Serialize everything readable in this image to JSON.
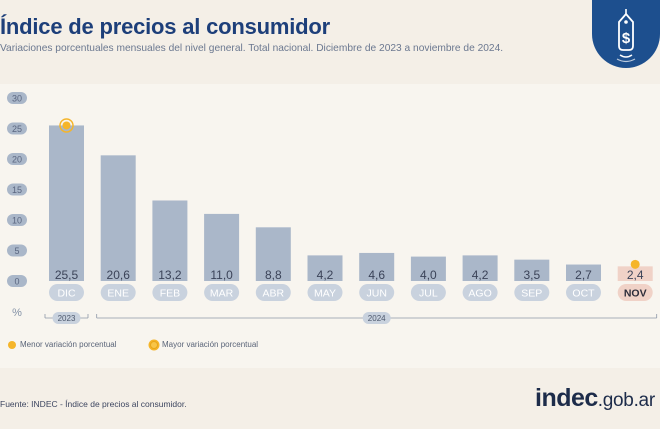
{
  "header": {
    "title": "Índice de precios al consumidor",
    "subtitle": "Variaciones porcentuales mensuales del nivel general. Total nacional. Diciembre de 2023 a noviembre de 2024."
  },
  "icons": {
    "badge": "price-tag-dollar-icon"
  },
  "chart_data": {
    "type": "bar",
    "categories": [
      "DIC",
      "ENE",
      "FEB",
      "MAR",
      "ABR",
      "MAY",
      "JUN",
      "JUL",
      "AGO",
      "SEP",
      "OCT",
      "NOV"
    ],
    "values": [
      25.5,
      20.6,
      13.2,
      11.0,
      8.8,
      4.2,
      4.6,
      4.0,
      4.2,
      3.5,
      2.7,
      2.4
    ],
    "value_labels": [
      "25,5",
      "20,6",
      "13,2",
      "11,0",
      "8,8",
      "4,2",
      "4,6",
      "4,0",
      "4,2",
      "3,5",
      "2,7",
      "2,4"
    ],
    "ylim": [
      0,
      30
    ],
    "yticks": [
      "0",
      "5",
      "10",
      "15",
      "20",
      "25",
      "30"
    ],
    "ylabel": "%",
    "year_groups": [
      {
        "label": "2023",
        "from": 0,
        "to": 0
      },
      {
        "label": "2024",
        "from": 1,
        "to": 11
      }
    ],
    "highlight_min_index": 11,
    "highlight_max_index": 0,
    "bar_color": "#aab7c9",
    "min_color": "#f0d2c7",
    "marker_color": "#f5b52a"
  },
  "legend": {
    "min_label": "Menor variación porcentual",
    "max_label": "Mayor variación porcentual"
  },
  "footer": {
    "source": "Fuente: INDEC - Índice de precios al consumidor.",
    "logo_bold": "indec",
    "logo_suffix": ".gob.ar"
  }
}
